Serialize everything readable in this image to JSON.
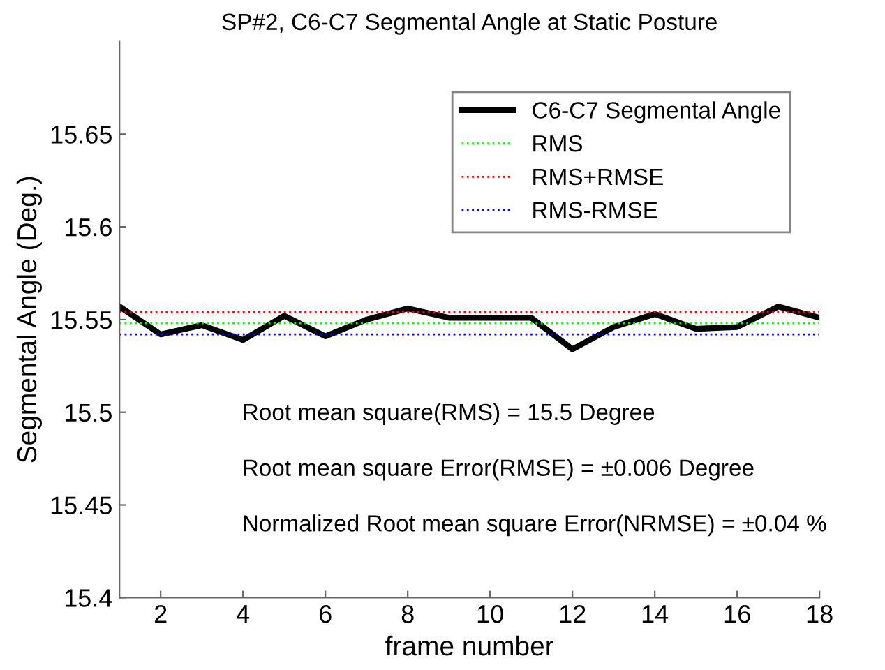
{
  "chart_data": {
    "type": "line",
    "title": "SP#2, C6-C7 Segmental Angle at Static Posture",
    "xlabel": "frame number",
    "ylabel": "Segmental Angle (Deg.)",
    "x": [
      1,
      2,
      3,
      4,
      5,
      6,
      7,
      8,
      9,
      10,
      11,
      12,
      13,
      14,
      15,
      16,
      17,
      18
    ],
    "series": [
      {
        "name": "C6-C7 Segmental Angle",
        "color": "#000000",
        "line_style": "solid",
        "values": [
          15.557,
          15.542,
          15.547,
          15.539,
          15.552,
          15.541,
          15.55,
          15.556,
          15.551,
          15.551,
          15.551,
          15.534,
          15.546,
          15.553,
          15.545,
          15.546,
          15.557,
          15.551
        ]
      }
    ],
    "ref_lines": [
      {
        "axis": "y",
        "value": 15.548,
        "label": "RMS",
        "color": "#00ff00",
        "line_style": "dotted"
      },
      {
        "axis": "y",
        "value": 15.554,
        "label": "RMS+RMSE",
        "color": "#ff0000",
        "line_style": "dotted"
      },
      {
        "axis": "y",
        "value": 15.542,
        "label": "RMS-RMSE",
        "color": "#0000ff",
        "line_style": "dotted"
      }
    ],
    "annotations": [
      "Root mean square(RMS) = 15.5 Degree",
      "Root mean square Error(RMSE) = ±0.006 Degree",
      "Normalized Root mean square Error(NRMSE) = ±0.04 %"
    ],
    "xlim": [
      1,
      18
    ],
    "xticks": [
      2,
      4,
      6,
      8,
      10,
      12,
      14,
      16,
      18
    ],
    "ylim": [
      15.4,
      15.7
    ],
    "yticks": [
      15.4,
      15.45,
      15.5,
      15.55,
      15.6,
      15.65
    ],
    "legend": "top right",
    "grid": false,
    "marker": "none"
  }
}
